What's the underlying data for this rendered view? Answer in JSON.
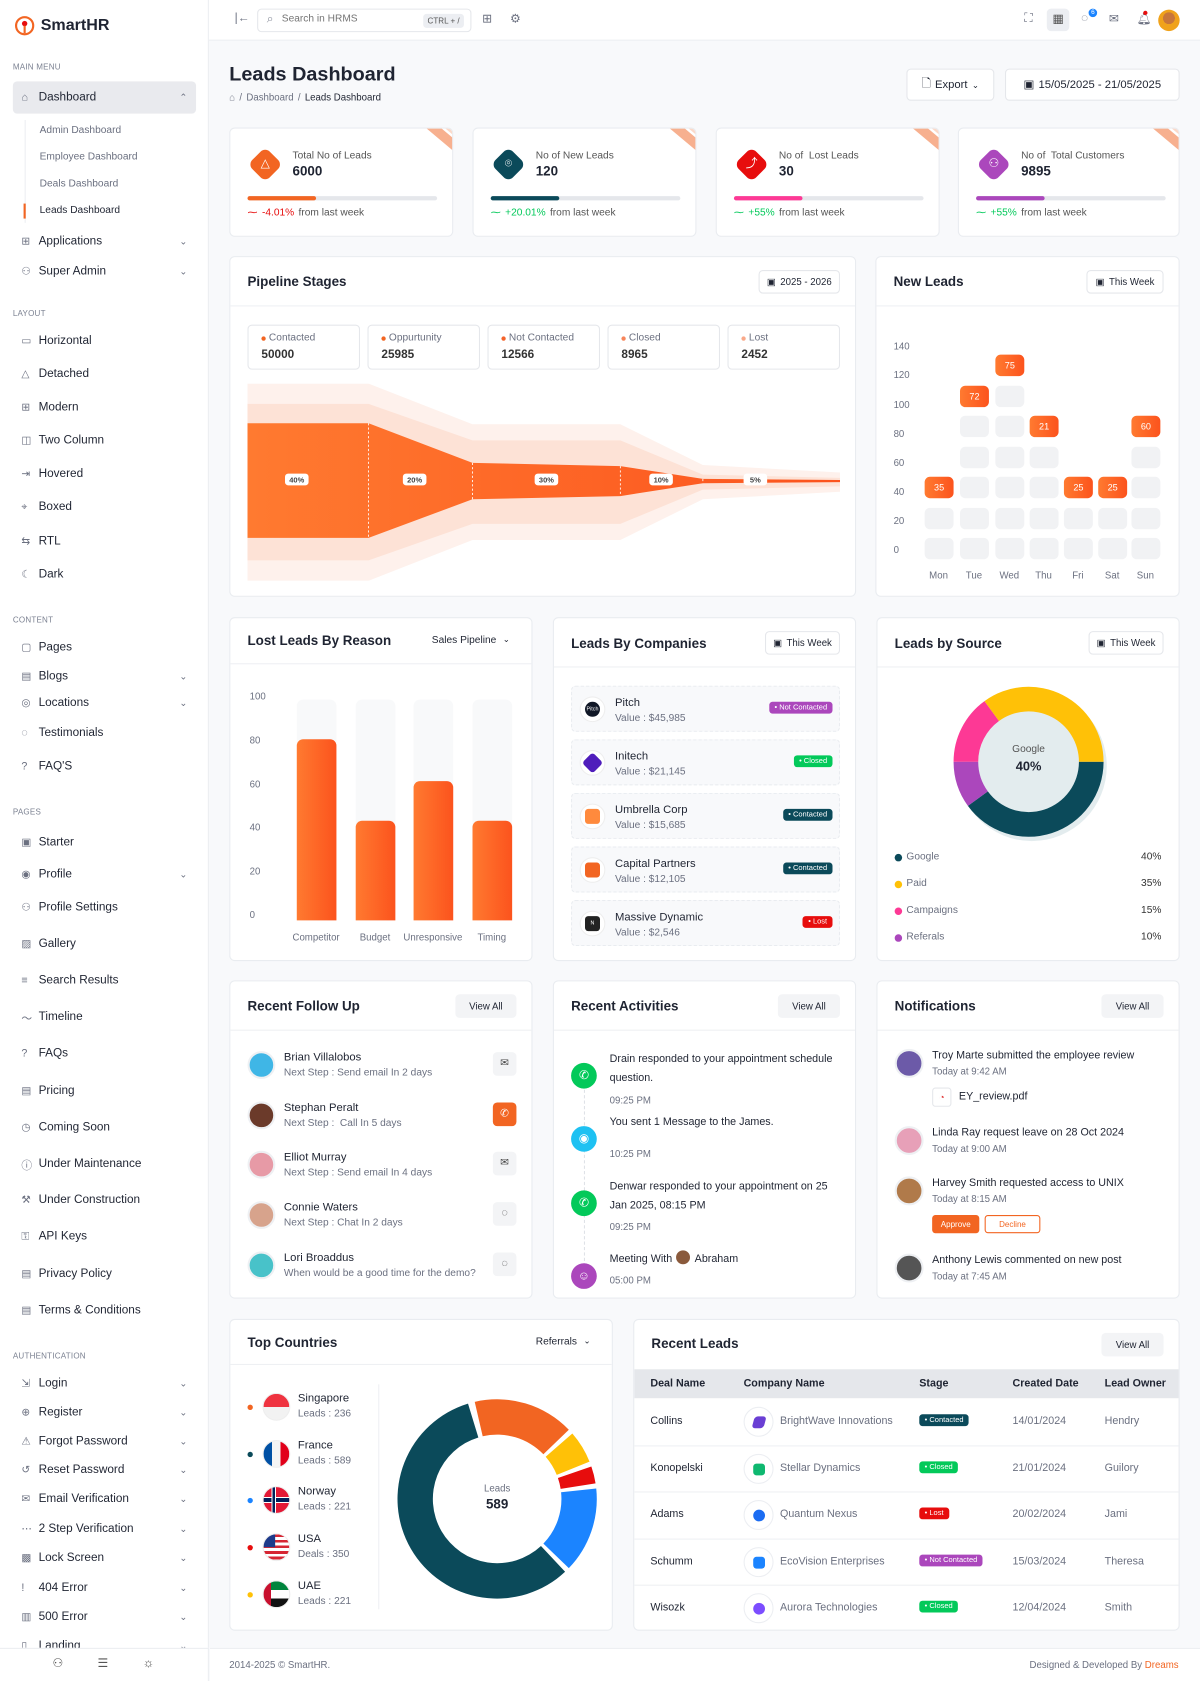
{
  "app": {
    "brand": "SmartHR",
    "accent": "#f26522"
  },
  "header": {
    "search_placeholder": "Search in HRMS",
    "search_shortcut": "CTRL + /",
    "chat_badge": "6"
  },
  "sidebar": {
    "items": [
      {
        "t": "s",
        "label": "MAIN MENU"
      },
      {
        "t": "i",
        "label": "Dashboard",
        "icon": "home-icon",
        "chev": "up",
        "active": true
      },
      {
        "t": "sub",
        "label": "Admin Dashboard"
      },
      {
        "t": "sub",
        "label": "Employee Dashboard"
      },
      {
        "t": "sub",
        "label": "Deals Dashboard"
      },
      {
        "t": "sub",
        "label": "Leads Dashboard",
        "active": true
      },
      {
        "t": "i",
        "label": "Applications",
        "icon": "apps-icon",
        "chev": "down"
      },
      {
        "t": "i",
        "label": "Super Admin",
        "icon": "user-icon",
        "chev": "down"
      },
      {
        "t": "s",
        "label": "LAYOUT"
      },
      {
        "t": "i",
        "label": "Horizontal",
        "icon": "layout-icon"
      },
      {
        "t": "i",
        "label": "Detached",
        "icon": "triangle-icon"
      },
      {
        "t": "i",
        "label": "Modern",
        "icon": "grid-icon"
      },
      {
        "t": "i",
        "label": "Two Column",
        "icon": "columns-icon"
      },
      {
        "t": "i",
        "label": "Hovered",
        "icon": "hover-icon"
      },
      {
        "t": "i",
        "label": "Boxed",
        "icon": "box-icon"
      },
      {
        "t": "i",
        "label": "RTL",
        "icon": "rtl-icon"
      },
      {
        "t": "i",
        "label": "Dark",
        "icon": "moon-icon"
      },
      {
        "t": "s",
        "label": "CONTENT"
      },
      {
        "t": "i",
        "label": "Pages",
        "icon": "pages-icon"
      },
      {
        "t": "i",
        "label": "Blogs",
        "icon": "blog-icon",
        "chev": "down"
      },
      {
        "t": "i",
        "label": "Locations",
        "icon": "location-icon",
        "chev": "down"
      },
      {
        "t": "i",
        "label": "Testimonials",
        "icon": "chat-icon"
      },
      {
        "t": "i",
        "label": "FAQ'S",
        "icon": "question-icon"
      },
      {
        "t": "s",
        "label": "PAGES"
      },
      {
        "t": "i",
        "label": "Starter",
        "icon": "starter-icon"
      },
      {
        "t": "i",
        "label": "Profile",
        "icon": "profile-icon",
        "chev": "down"
      },
      {
        "t": "i",
        "label": "Profile Settings",
        "icon": "user-cog-icon"
      },
      {
        "t": "i",
        "label": "Gallery",
        "icon": "gallery-icon"
      },
      {
        "t": "i",
        "label": "Search Results",
        "icon": "search-list-icon"
      },
      {
        "t": "i",
        "label": "Timeline",
        "icon": "timeline-icon"
      },
      {
        "t": "i",
        "label": "FAQs",
        "icon": "question-icon"
      },
      {
        "t": "i",
        "label": "Pricing",
        "icon": "pricing-icon"
      },
      {
        "t": "i",
        "label": "Coming Soon",
        "icon": "clock-icon"
      },
      {
        "t": "i",
        "label": "Under Maintenance",
        "icon": "info-icon"
      },
      {
        "t": "i",
        "label": "Under Construction",
        "icon": "tools-icon"
      },
      {
        "t": "i",
        "label": "API Keys",
        "icon": "key-icon"
      },
      {
        "t": "i",
        "label": "Privacy Policy",
        "icon": "doc-icon"
      },
      {
        "t": "i",
        "label": "Terms & Conditions",
        "icon": "doc-icon"
      },
      {
        "t": "s",
        "label": "AUTHENTICATION"
      },
      {
        "t": "i",
        "label": "Login",
        "icon": "login-icon",
        "chev": "down"
      },
      {
        "t": "i",
        "label": "Register",
        "icon": "register-icon",
        "chev": "down"
      },
      {
        "t": "i",
        "label": "Forgot Password",
        "icon": "warning-icon",
        "chev": "down"
      },
      {
        "t": "i",
        "label": "Reset Password",
        "icon": "reset-icon",
        "chev": "down"
      },
      {
        "t": "i",
        "label": "Email Verification",
        "icon": "mail-icon",
        "chev": "down"
      },
      {
        "t": "i",
        "label": "2 Step Verification",
        "icon": "dots-icon",
        "chev": "down"
      },
      {
        "t": "i",
        "label": "Lock Screen",
        "icon": "lock-icon",
        "chev": "down"
      },
      {
        "t": "i",
        "label": "404 Error",
        "icon": "error-icon",
        "chev": "down"
      },
      {
        "t": "i",
        "label": "500 Error",
        "icon": "server-icon",
        "chev": "down"
      },
      {
        "t": "i",
        "label": "Landing",
        "icon": "landing-icon",
        "chev": "down"
      }
    ]
  },
  "page": {
    "title": "Leads Dashboard",
    "breadcrumb": [
      "Dashboard",
      "Leads Dashboard"
    ],
    "export_label": "Export",
    "date_range": "15/05/2025 - 21/05/2025"
  },
  "stats": [
    {
      "label": "Total No of Leads",
      "value": "6000",
      "trend": "-4.01%",
      "trend_suffix": "from last week",
      "trend_dir": "down",
      "color": "#f26522",
      "progress": 36,
      "icon": "alert-triangle-icon"
    },
    {
      "label": "No of New Leads",
      "value": "120",
      "trend": "+20.01%",
      "trend_suffix": "from last week",
      "trend_dir": "up",
      "color": "#0b4a5a",
      "progress": 36,
      "icon": "target-icon"
    },
    {
      "label": "No of  Lost Leads",
      "value": "30",
      "trend": "+55%",
      "trend_suffix": "from last week",
      "trend_dir": "up",
      "color": "#e70d0d",
      "progress": 36,
      "icon": "stairs-icon",
      "bar": "#fd3995"
    },
    {
      "label": "No of  Total Customers",
      "value": "9895",
      "trend": "+55%",
      "trend_suffix": "from last week",
      "trend_dir": "up",
      "color": "#ab47bc",
      "progress": 36,
      "icon": "users-icon"
    }
  ],
  "pipeline": {
    "title": "Pipeline Stages",
    "period": "2025 - 2026",
    "stages": [
      {
        "label": "Contacted",
        "value": "50000",
        "color": "#f26522"
      },
      {
        "label": "Oppurtunity",
        "value": "25985",
        "color": "#f26522"
      },
      {
        "label": "Not Contacted",
        "value": "12566",
        "color": "#f4632b"
      },
      {
        "label": "Closed",
        "value": "8965",
        "color": "#f7855a"
      },
      {
        "label": "Lost",
        "value": "2452",
        "color": "#f9a98a"
      }
    ]
  },
  "new_leads": {
    "title": "New Leads",
    "period": "This Week"
  },
  "lost_leads": {
    "title": "Lost Leads By Reason",
    "filter": "Sales Pipeline"
  },
  "companies": {
    "title": "Leads By Companies",
    "period": "This Week",
    "items": [
      {
        "name": "Pitch",
        "value": "Value : $45,985",
        "status": "Not Contacted",
        "status_color": "#ab47bc",
        "logo_color": "#111827",
        "logo_text": "Pitch"
      },
      {
        "name": "Initech",
        "value": "Value : $21,145",
        "status": "Closed",
        "status_color": "#03c95a",
        "logo_color": "#4f1dbb",
        "logo_text": ""
      },
      {
        "name": "Umbrella Corp",
        "value": "Value : $15,685",
        "status": "Contacted",
        "status_color": "#0b4a5a",
        "logo_color": "#ff8a3d",
        "logo_text": ""
      },
      {
        "name": "Capital Partners",
        "value": "Value : $12,105",
        "status": "Contacted",
        "status_color": "#0b4a5a",
        "logo_color": "#f26522",
        "logo_text": ""
      },
      {
        "name": "Massive Dynamic",
        "value": "Value : $2,546",
        "status": "Lost",
        "status_color": "#e70d0d",
        "logo_color": "#222",
        "logo_text": "N"
      }
    ]
  },
  "source": {
    "title": "Leads by Source",
    "period": "This Week",
    "center_label": "Google",
    "center_value": "40%"
  },
  "followup": {
    "title": "Recent Follow Up",
    "view_all": "View All",
    "items": [
      {
        "name": "Brian Villalobos",
        "step": "Next Step : Send email In 2 days",
        "action": "mail-icon",
        "avatar": "#3fb6e6"
      },
      {
        "name": "Stephan Peralt",
        "step": "Next Step :  Call In 5 days",
        "action": "phone-icon",
        "avatar": "#6b3a2a",
        "highlight": true
      },
      {
        "name": "Elliot Murray",
        "step": "Next Step : Send email In 4 days",
        "action": "mail-icon",
        "avatar": "#e79aa6"
      },
      {
        "name": "Connie Waters",
        "step": "Next Step : Chat In 2 days",
        "action": "chat-icon",
        "avatar": "#d7a38c"
      },
      {
        "name": "Lori Broaddus",
        "step": "When would be a good time for the demo?",
        "action": "chat-icon",
        "avatar": "#48c2c9"
      }
    ]
  },
  "activities": {
    "title": "Recent Activities",
    "view_all": "View All",
    "items": [
      {
        "text": "Drain responded to your appointment schedule question.",
        "time": "09:25 PM",
        "icon": "phone-icon",
        "color": "#03c95a"
      },
      {
        "text": "You sent 1 Message to the James.",
        "time": "10:25 PM",
        "icon": "chat-icon",
        "color": "#1ec1f2"
      },
      {
        "text": "Denwar responded to your appointment on 25 Jan 2025, 08:15 PM",
        "time": "09:25 PM",
        "icon": "phone-icon",
        "color": "#03c95a"
      },
      {
        "text": "Meeting With",
        "person": "Abraham",
        "time": "05:00 PM",
        "icon": "user-circle-icon",
        "color": "#ab47bc"
      }
    ]
  },
  "notifications": {
    "title": "Notifications",
    "view_all": "View All",
    "items": [
      {
        "text": "Troy Marte submitted the employee review",
        "time": "Today at 9:42 AM",
        "file": "EY_review.pdf",
        "avatar": "#6c5aa8"
      },
      {
        "text": "Linda Ray request leave on 28 Oct 2024",
        "time": "Today at 9:00 AM",
        "avatar": "#e7a0b8"
      },
      {
        "text": "Harvey Smith requested access to UNIX",
        "time": "Today at 8:15 AM",
        "approve": "Approve",
        "decline": "Decline",
        "avatar": "#b07a4a"
      },
      {
        "text": "Anthony Lewis commented on new post",
        "time": "Today at 7:45 AM",
        "avatar": "#555"
      }
    ]
  },
  "countries": {
    "title": "Top Countries",
    "filter": "Referrals",
    "center_label": "Leads",
    "center_value": "589",
    "items": [
      {
        "name": "Singapore",
        "sub": "Leads : 236",
        "color": "#f26522",
        "flag": "sg"
      },
      {
        "name": "France",
        "sub": "Leads : 589",
        "color": "#0b4a5a",
        "flag": "fr"
      },
      {
        "name": "Norway",
        "sub": "Leads : 221",
        "color": "#1b84ff",
        "flag": "no"
      },
      {
        "name": "USA",
        "sub": "Deals : 350",
        "color": "#e70d0d",
        "flag": "us"
      },
      {
        "name": "UAE",
        "sub": "Leads : 221",
        "color": "#ffc107",
        "flag": "ae"
      }
    ]
  },
  "recent_leads": {
    "title": "Recent Leads",
    "view_all": "View All",
    "columns": [
      "Deal Name",
      "Company Name",
      "Stage",
      "Created Date",
      "Lead Owner"
    ],
    "rows": [
      {
        "deal": "Collins",
        "company": "BrightWave Innovations",
        "stage": "Contacted",
        "stage_color": "#0b4a5a",
        "date": "14/01/2024",
        "owner": "Hendry",
        "logo_color": "#6a3fd4"
      },
      {
        "deal": "Konopelski",
        "company": "Stellar Dynamics",
        "stage": "Closed",
        "stage_color": "#03c95a",
        "date": "21/01/2024",
        "owner": "Guilory",
        "logo_color": "#0fb870"
      },
      {
        "deal": "Adams",
        "company": "Quantum Nexus",
        "stage": "Lost",
        "stage_color": "#e70d0d",
        "date": "20/02/2024",
        "owner": "Jami",
        "logo_color": "#1b6cf2"
      },
      {
        "deal": "Schumm",
        "company": "EcoVision Enterprises",
        "stage": "Not Contacted",
        "stage_color": "#ab47bc",
        "date": "15/03/2024",
        "owner": "Theresa",
        "logo_color": "#1b84ff"
      },
      {
        "deal": "Wisozk",
        "company": "Aurora Technologies",
        "stage": "Closed",
        "stage_color": "#03c95a",
        "date": "12/04/2024",
        "owner": "Smith",
        "logo_color": "#7c4dff"
      }
    ]
  },
  "footer": {
    "copyright": "2014-2025 © SmartHR.",
    "credit": "Designed & Developed By",
    "credit_brand": "Dreams"
  },
  "chart_data": [
    {
      "type": "funnel",
      "title": "Pipeline Stages",
      "labels": [
        "40%",
        "20%",
        "30%",
        "10%",
        "5%"
      ],
      "values": [
        40,
        20,
        30,
        10,
        5
      ]
    },
    {
      "type": "bar",
      "title": "New Leads",
      "categories": [
        "Mon",
        "Tue",
        "Wed",
        "Thu",
        "Fri",
        "Sat",
        "Sun"
      ],
      "values": [
        35,
        72,
        75,
        21,
        25,
        25,
        60
      ],
      "levels": [
        40,
        100,
        120,
        80,
        40,
        40,
        80
      ],
      "yticks": [
        0,
        20,
        40,
        60,
        80,
        100,
        120,
        140
      ],
      "ylim": [
        0,
        140
      ]
    },
    {
      "type": "bar",
      "title": "Lost Leads By Reason",
      "categories": [
        "Competitor",
        "Budget",
        "Unresponsive",
        "Timing"
      ],
      "values": [
        82,
        45,
        63,
        45
      ],
      "yticks": [
        0,
        20,
        40,
        60,
        80,
        100
      ],
      "ylim": [
        0,
        100
      ]
    },
    {
      "type": "pie",
      "title": "Leads by Source",
      "labels": [
        "Google",
        "Paid",
        "Campaigns",
        "Referals"
      ],
      "values": [
        40,
        35,
        15,
        10
      ],
      "value_labels": [
        "40%",
        "35%",
        "15%",
        "10%"
      ],
      "colors": [
        "#0b4a5a",
        "#ffc107",
        "#fd3995",
        "#ab47bc"
      ]
    },
    {
      "type": "pie",
      "title": "Top Countries",
      "labels": [
        "Singapore",
        "France",
        "Norway",
        "USA",
        "UAE"
      ],
      "colors": [
        "#f26522",
        "#0b4a5a",
        "#1b84ff",
        "#e70d0d",
        "#ffc107"
      ]
    }
  ]
}
